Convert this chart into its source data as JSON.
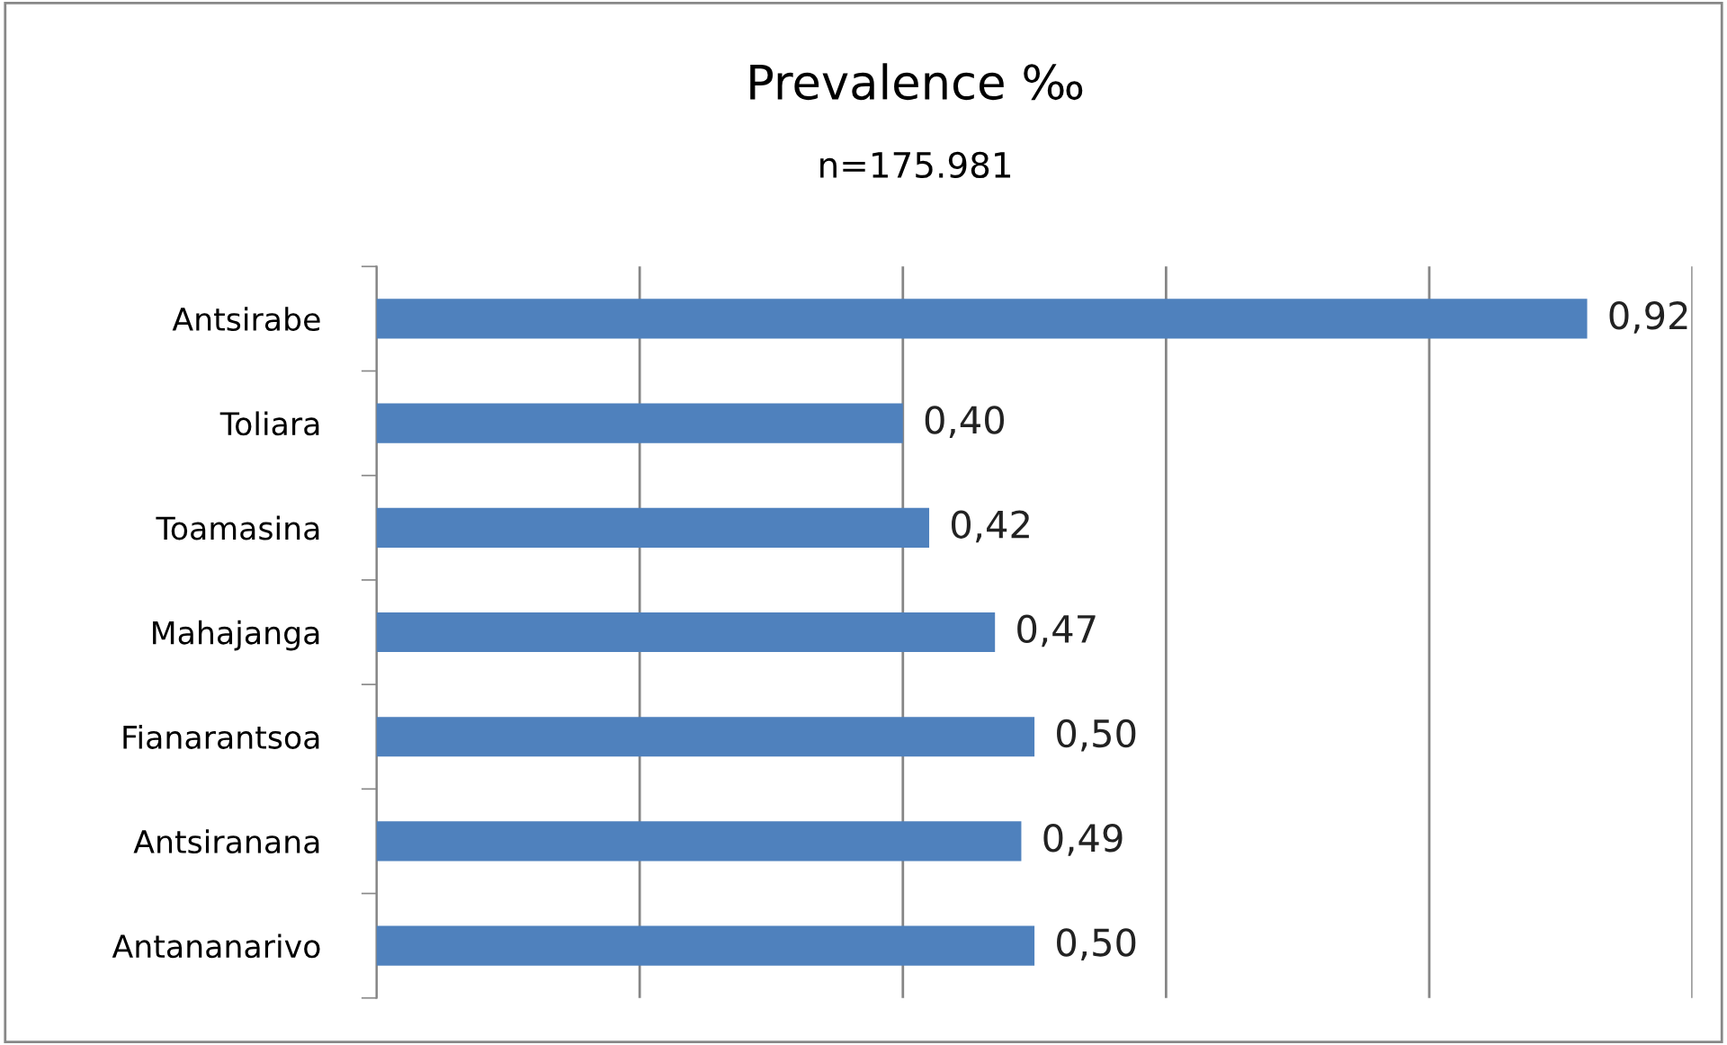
{
  "chart_data": {
    "type": "bar",
    "orientation": "horizontal",
    "title": "Prevalence ‰",
    "subtitle": "n=175.981",
    "categories": [
      "Antsirabe",
      "Toliara",
      "Toamasina",
      "Mahajanga",
      "Fianarantsoa",
      "Antsiranana",
      "Antananarivo"
    ],
    "values": [
      0.92,
      0.4,
      0.42,
      0.47,
      0.5,
      0.49,
      0.5
    ],
    "value_labels": [
      "0,92",
      "0,40",
      "0,42",
      "0,47",
      "0,50",
      "0,49",
      "0,50"
    ],
    "color": "#4f81bd",
    "xlim": [
      0,
      1.0
    ],
    "xticks": [
      {
        "value": 0,
        "label": null
      },
      {
        "value": 0.2,
        "label": null
      },
      {
        "value": 0.4,
        "label": null
      },
      {
        "value": 0.6,
        "label": null
      },
      {
        "value": 0.8,
        "label": null
      },
      {
        "value": 1.0,
        "label": null
      }
    ],
    "tick_labels": "y",
    "grid": "x",
    "legend": false
  }
}
